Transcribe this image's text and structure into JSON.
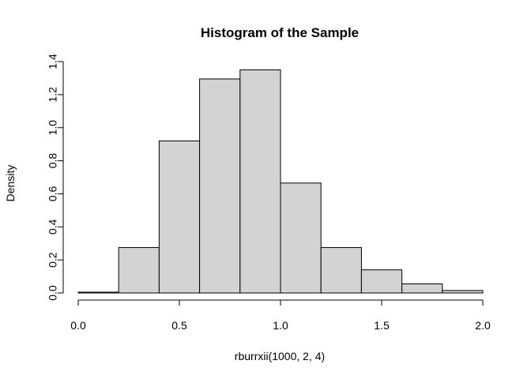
{
  "chart_data": {
    "type": "bar",
    "subtype": "histogram",
    "title": "Histogram of the Sample",
    "xlabel": "rburrxii(1000, 2, 4)",
    "ylabel": "Density",
    "bins": [
      {
        "x0": 0.0,
        "x1": 0.2,
        "density": 0.005
      },
      {
        "x0": 0.2,
        "x1": 0.4,
        "density": 0.275
      },
      {
        "x0": 0.4,
        "x1": 0.6,
        "density": 0.92
      },
      {
        "x0": 0.6,
        "x1": 0.8,
        "density": 1.295
      },
      {
        "x0": 0.8,
        "x1": 1.0,
        "density": 1.35
      },
      {
        "x0": 1.0,
        "x1": 1.2,
        "density": 0.665
      },
      {
        "x0": 1.2,
        "x1": 1.4,
        "density": 0.275
      },
      {
        "x0": 1.4,
        "x1": 1.6,
        "density": 0.14
      },
      {
        "x0": 1.6,
        "x1": 1.8,
        "density": 0.055
      },
      {
        "x0": 1.8,
        "x1": 2.0,
        "density": 0.015
      }
    ],
    "xlim": [
      0.0,
      2.0
    ],
    "ylim": [
      0.0,
      1.4
    ],
    "xticks": [
      "0.0",
      "0.5",
      "1.0",
      "1.5",
      "2.0"
    ],
    "yticks": [
      "0.0",
      "0.2",
      "0.4",
      "0.6",
      "0.8",
      "1.0",
      "1.2",
      "1.4"
    ],
    "grid": false,
    "colors": {
      "bar_fill": "#d3d3d3",
      "bar_stroke": "#000000",
      "axis": "#000000"
    }
  }
}
